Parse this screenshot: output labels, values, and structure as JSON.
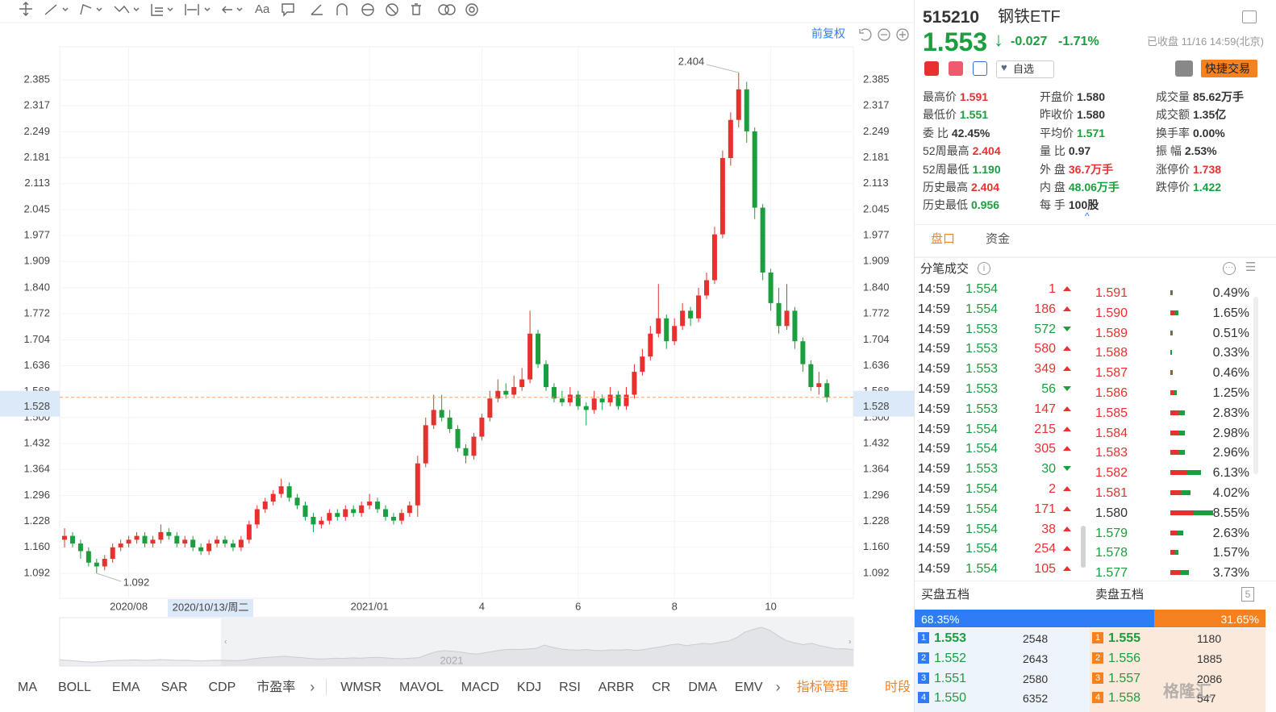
{
  "toolbar": {
    "text_tool": "Aa"
  },
  "chart_header": {
    "adjust": "前复权"
  },
  "chart_data": {
    "type": "candlestick",
    "categories": [
      null,
      null,
      null,
      null,
      null,
      null,
      null,
      null,
      "2020/08",
      null,
      null,
      null,
      null,
      null,
      null,
      null,
      null,
      null,
      null,
      null,
      null,
      null,
      null,
      null,
      null,
      null,
      null,
      null,
      null,
      null,
      null,
      null,
      null,
      null,
      null,
      null,
      null,
      null,
      "2021/01",
      null,
      null,
      null,
      null,
      null,
      null,
      null,
      null,
      null,
      null,
      null,
      null,
      null,
      "4",
      null,
      null,
      null,
      null,
      null,
      null,
      null,
      null,
      null,
      null,
      null,
      "6",
      null,
      null,
      null,
      null,
      null,
      null,
      null,
      null,
      null,
      null,
      null,
      "8",
      null,
      null,
      null,
      null,
      null,
      null,
      null,
      null,
      null,
      null,
      null,
      "10",
      null,
      null,
      null,
      null,
      null,
      null,
      null
    ],
    "candles": [
      [
        1.18,
        1.21,
        1.16,
        1.19
      ],
      [
        1.19,
        1.2,
        1.16,
        1.17
      ],
      [
        1.17,
        1.18,
        1.13,
        1.15
      ],
      [
        1.15,
        1.16,
        1.11,
        1.12
      ],
      [
        1.12,
        1.13,
        1.092,
        1.11
      ],
      [
        1.11,
        1.14,
        1.1,
        1.13
      ],
      [
        1.13,
        1.17,
        1.12,
        1.16
      ],
      [
        1.16,
        1.18,
        1.15,
        1.17
      ],
      [
        1.17,
        1.19,
        1.16,
        1.18
      ],
      [
        1.18,
        1.2,
        1.17,
        1.19
      ],
      [
        1.19,
        1.2,
        1.16,
        1.17
      ],
      [
        1.17,
        1.19,
        1.16,
        1.18
      ],
      [
        1.18,
        1.22,
        1.17,
        1.2
      ],
      [
        1.2,
        1.21,
        1.18,
        1.19
      ],
      [
        1.19,
        1.2,
        1.16,
        1.17
      ],
      [
        1.17,
        1.19,
        1.16,
        1.18
      ],
      [
        1.18,
        1.19,
        1.15,
        1.16
      ],
      [
        1.16,
        1.17,
        1.14,
        1.15
      ],
      [
        1.15,
        1.18,
        1.14,
        1.17
      ],
      [
        1.17,
        1.19,
        1.16,
        1.18
      ],
      [
        1.18,
        1.19,
        1.16,
        1.17
      ],
      [
        1.17,
        1.18,
        1.15,
        1.16
      ],
      [
        1.16,
        1.19,
        1.15,
        1.18
      ],
      [
        1.18,
        1.23,
        1.17,
        1.22
      ],
      [
        1.22,
        1.27,
        1.21,
        1.26
      ],
      [
        1.26,
        1.29,
        1.25,
        1.28
      ],
      [
        1.28,
        1.31,
        1.27,
        1.3
      ],
      [
        1.3,
        1.34,
        1.29,
        1.32
      ],
      [
        1.32,
        1.33,
        1.28,
        1.29
      ],
      [
        1.29,
        1.3,
        1.26,
        1.27
      ],
      [
        1.27,
        1.28,
        1.23,
        1.24
      ],
      [
        1.24,
        1.25,
        1.2,
        1.22
      ],
      [
        1.22,
        1.24,
        1.21,
        1.23
      ],
      [
        1.23,
        1.26,
        1.22,
        1.25
      ],
      [
        1.25,
        1.26,
        1.23,
        1.24
      ],
      [
        1.24,
        1.27,
        1.23,
        1.26
      ],
      [
        1.26,
        1.27,
        1.24,
        1.25
      ],
      [
        1.25,
        1.28,
        1.24,
        1.27
      ],
      [
        1.27,
        1.3,
        1.26,
        1.28
      ],
      [
        1.28,
        1.29,
        1.25,
        1.26
      ],
      [
        1.26,
        1.27,
        1.23,
        1.24
      ],
      [
        1.24,
        1.25,
        1.22,
        1.23
      ],
      [
        1.23,
        1.26,
        1.22,
        1.25
      ],
      [
        1.25,
        1.28,
        1.24,
        1.27
      ],
      [
        1.27,
        1.4,
        1.24,
        1.38
      ],
      [
        1.38,
        1.5,
        1.37,
        1.48
      ],
      [
        1.48,
        1.56,
        1.47,
        1.52
      ],
      [
        1.52,
        1.56,
        1.49,
        1.5
      ],
      [
        1.5,
        1.52,
        1.46,
        1.47
      ],
      [
        1.47,
        1.48,
        1.41,
        1.42
      ],
      [
        1.42,
        1.43,
        1.38,
        1.4
      ],
      [
        1.4,
        1.46,
        1.39,
        1.45
      ],
      [
        1.45,
        1.51,
        1.44,
        1.5
      ],
      [
        1.5,
        1.57,
        1.49,
        1.55
      ],
      [
        1.55,
        1.6,
        1.54,
        1.57
      ],
      [
        1.57,
        1.59,
        1.55,
        1.56
      ],
      [
        1.56,
        1.61,
        1.55,
        1.58
      ],
      [
        1.58,
        1.63,
        1.57,
        1.6
      ],
      [
        1.6,
        1.78,
        1.59,
        1.72
      ],
      [
        1.72,
        1.73,
        1.63,
        1.64
      ],
      [
        1.64,
        1.65,
        1.57,
        1.58
      ],
      [
        1.58,
        1.59,
        1.54,
        1.55
      ],
      [
        1.55,
        1.57,
        1.53,
        1.54
      ],
      [
        1.54,
        1.58,
        1.53,
        1.56
      ],
      [
        1.56,
        1.57,
        1.52,
        1.53
      ],
      [
        1.53,
        1.54,
        1.48,
        1.52
      ],
      [
        1.52,
        1.57,
        1.51,
        1.55
      ],
      [
        1.55,
        1.56,
        1.52,
        1.54
      ],
      [
        1.54,
        1.58,
        1.53,
        1.56
      ],
      [
        1.56,
        1.57,
        1.52,
        1.53
      ],
      [
        1.53,
        1.58,
        1.52,
        1.56
      ],
      [
        1.56,
        1.64,
        1.55,
        1.62
      ],
      [
        1.62,
        1.68,
        1.61,
        1.66
      ],
      [
        1.66,
        1.74,
        1.65,
        1.72
      ],
      [
        1.72,
        1.85,
        1.71,
        1.76
      ],
      [
        1.76,
        1.77,
        1.68,
        1.7
      ],
      [
        1.7,
        1.76,
        1.69,
        1.74
      ],
      [
        1.74,
        1.8,
        1.73,
        1.78
      ],
      [
        1.78,
        1.79,
        1.74,
        1.76
      ],
      [
        1.76,
        1.84,
        1.75,
        1.82
      ],
      [
        1.82,
        1.88,
        1.81,
        1.86
      ],
      [
        1.86,
        2.0,
        1.85,
        1.98
      ],
      [
        1.98,
        2.2,
        1.97,
        2.18
      ],
      [
        2.18,
        2.3,
        2.16,
        2.28
      ],
      [
        2.28,
        2.404,
        2.26,
        2.36
      ],
      [
        2.36,
        2.38,
        2.22,
        2.25
      ],
      [
        2.25,
        2.26,
        2.02,
        2.05
      ],
      [
        2.05,
        2.06,
        1.86,
        1.88
      ],
      [
        1.88,
        1.89,
        1.78,
        1.8
      ],
      [
        1.8,
        1.84,
        1.72,
        1.74
      ],
      [
        1.74,
        1.85,
        1.73,
        1.78
      ],
      [
        1.78,
        1.79,
        1.68,
        1.7
      ],
      [
        1.7,
        1.71,
        1.62,
        1.64
      ],
      [
        1.64,
        1.65,
        1.57,
        1.58
      ],
      [
        1.58,
        1.62,
        1.56,
        1.59
      ],
      [
        1.59,
        1.6,
        1.54,
        1.553
      ]
    ],
    "up_color": "#e8312f",
    "down_color": "#1b9e3e",
    "price_line_color": "#f5a35c",
    "ylim": [
      1.0265,
      2.4716
    ],
    "yticks": [
      2.385,
      2.317,
      2.249,
      2.181,
      2.113,
      2.045,
      1.977,
      1.909,
      {
        "value": 1.84,
        "label": "1.840"
      },
      1.772,
      1.704,
      1.636,
      1.568,
      {
        "value": 1.5,
        "label": "1.500"
      },
      1.432,
      1.364,
      1.296,
      1.228,
      {
        "value": 1.16,
        "label": "1.160"
      },
      1.092
    ],
    "grid": true,
    "crosshair": {
      "value": 1.528,
      "date": "2020/10/13/周二"
    },
    "navigator": {
      "label": "2021"
    }
  },
  "indicators": {
    "tabs": [
      "MA",
      "BOLL",
      "EMA",
      "SAR",
      "CDP",
      "市盈率"
    ],
    "tabs2": [
      "WMSR",
      "MAVOL",
      "MACD",
      "KDJ",
      "RSI",
      "ARBR",
      "CR",
      "DMA",
      "EMV"
    ],
    "manage": "指标管理",
    "period": "时段"
  },
  "quote": {
    "code": "515210",
    "name": "钢铁ETF",
    "price": "1.553",
    "change": "-0.027",
    "change_pct": "-1.71%",
    "status": "已收盘 11/16 14:59(北京)",
    "watch": "自选",
    "trade": "快捷交易",
    "stats": [
      [
        {
          "label": "最高价",
          "value": "1.591",
          "tone": "up"
        },
        {
          "label": "最低价",
          "value": "1.551",
          "tone": "down"
        },
        {
          "label": "委 比",
          "value": "42.45%",
          "tone": "flat"
        },
        {
          "label": "52周最高",
          "value": "2.404",
          "tone": "up"
        },
        {
          "label": "52周最低",
          "value": "1.190",
          "tone": "down"
        },
        {
          "label": "历史最高",
          "value": "2.404",
          "tone": "up"
        },
        {
          "label": "历史最低",
          "value": "0.956",
          "tone": "down"
        }
      ],
      [
        {
          "label": "开盘价",
          "value": "1.580",
          "tone": "flat"
        },
        {
          "label": "昨收价",
          "value": "1.580",
          "tone": "flat"
        },
        {
          "label": "平均价",
          "value": "1.571",
          "tone": "down"
        },
        {
          "label": "量 比",
          "value": "0.97",
          "tone": "flat"
        },
        {
          "label": "外 盘",
          "value": "36.7万手",
          "tone": "up"
        },
        {
          "label": "内 盘",
          "value": "48.06万手",
          "tone": "down"
        },
        {
          "label": "每 手",
          "value": "100股",
          "tone": "flat"
        }
      ],
      [
        {
          "label": "成交量",
          "value": "85.62万手",
          "tone": "flat"
        },
        {
          "label": "成交额",
          "value": "1.35亿",
          "tone": "flat"
        },
        {
          "label": "换手率",
          "value": "0.00%",
          "tone": "flat"
        },
        {
          "label": "振 幅",
          "value": "2.53%",
          "tone": "flat"
        },
        {
          "label": "涨停价",
          "value": "1.738",
          "tone": "up"
        },
        {
          "label": "跌停价",
          "value": "1.422",
          "tone": "down"
        }
      ]
    ],
    "tabs": [
      "盘口",
      "资金"
    ],
    "ticks_title": "分笔成交",
    "trades": [
      {
        "time": "14:59",
        "price": "1.554",
        "volume": "1",
        "dir": "up"
      },
      {
        "time": "14:59",
        "price": "1.554",
        "volume": "186",
        "dir": "up"
      },
      {
        "time": "14:59",
        "price": "1.553",
        "volume": "572",
        "dir": "down"
      },
      {
        "time": "14:59",
        "price": "1.553",
        "volume": "580",
        "dir": "up"
      },
      {
        "time": "14:59",
        "price": "1.553",
        "volume": "349",
        "dir": "up"
      },
      {
        "time": "14:59",
        "price": "1.553",
        "volume": "56",
        "dir": "down"
      },
      {
        "time": "14:59",
        "price": "1.553",
        "volume": "147",
        "dir": "up"
      },
      {
        "time": "14:59",
        "price": "1.554",
        "volume": "215",
        "dir": "up"
      },
      {
        "time": "14:59",
        "price": "1.554",
        "volume": "305",
        "dir": "up"
      },
      {
        "time": "14:59",
        "price": "1.553",
        "volume": "30",
        "dir": "down"
      },
      {
        "time": "14:59",
        "price": "1.554",
        "volume": "2",
        "dir": "up"
      },
      {
        "time": "14:59",
        "price": "1.554",
        "volume": "171",
        "dir": "up"
      },
      {
        "time": "14:59",
        "price": "1.554",
        "volume": "38",
        "dir": "up"
      },
      {
        "time": "14:59",
        "price": "1.554",
        "volume": "254",
        "dir": "up"
      },
      {
        "time": "14:59",
        "price": "1.554",
        "volume": "105",
        "dir": "up"
      }
    ],
    "levels": [
      {
        "price": "1.591",
        "tone": "up",
        "value": 0.49,
        "value_label": "0.49%"
      },
      {
        "price": "1.590",
        "tone": "up",
        "value": 1.65,
        "value_label": "1.65%"
      },
      {
        "price": "1.589",
        "tone": "up",
        "value": 0.51,
        "value_label": "0.51%"
      },
      {
        "price": "1.588",
        "tone": "up",
        "value": 0.33,
        "value_label": "0.33%"
      },
      {
        "price": "1.587",
        "tone": "up",
        "value": 0.46,
        "value_label": "0.46%"
      },
      {
        "price": "1.586",
        "tone": "up",
        "value": 1.25,
        "value_label": "1.25%"
      },
      {
        "price": "1.585",
        "tone": "up",
        "value": 2.83,
        "value_label": "2.83%"
      },
      {
        "price": "1.584",
        "tone": "up",
        "value": 2.98,
        "value_label": "2.98%"
      },
      {
        "price": "1.583",
        "tone": "up",
        "value": 2.96,
        "value_label": "2.96%"
      },
      {
        "price": "1.582",
        "tone": "up",
        "value": 6.13,
        "value_label": "6.13%"
      },
      {
        "price": "1.581",
        "tone": "up",
        "value": 4.02,
        "value_label": "4.02%"
      },
      {
        "price": "1.580",
        "tone": "flat",
        "value": 8.55,
        "value_label": "8.55%"
      },
      {
        "price": "1.579",
        "tone": "down",
        "value": 2.63,
        "value_label": "2.63%"
      },
      {
        "price": "1.578",
        "tone": "down",
        "value": 1.57,
        "value_label": "1.57%"
      },
      {
        "price": "1.577",
        "tone": "down",
        "value": 3.73,
        "value_label": "3.73%"
      }
    ],
    "book": {
      "buy_title": "买盘五档",
      "sell_title": "卖盘五档",
      "buy_ratio": {
        "value": 68.35,
        "label": "68.35%"
      },
      "sell_ratio": {
        "value": 31.65,
        "label": "31.65%"
      },
      "buy": [
        {
          "level": "1",
          "price": "1.553",
          "volume": "2548"
        },
        {
          "level": "2",
          "price": "1.552",
          "volume": "2643"
        },
        {
          "level": "3",
          "price": "1.551",
          "volume": "2580"
        },
        {
          "level": "4",
          "price": "1.550",
          "volume": "6352"
        }
      ],
      "sell": [
        {
          "level": "1",
          "price": "1.555",
          "volume": "1180"
        },
        {
          "level": "2",
          "price": "1.556",
          "volume": "1885"
        },
        {
          "level": "3",
          "price": "1.557",
          "volume": "2086"
        },
        {
          "level": "4",
          "price": "1.558",
          "volume": "547"
        }
      ]
    },
    "watermark": "格隆汇"
  }
}
